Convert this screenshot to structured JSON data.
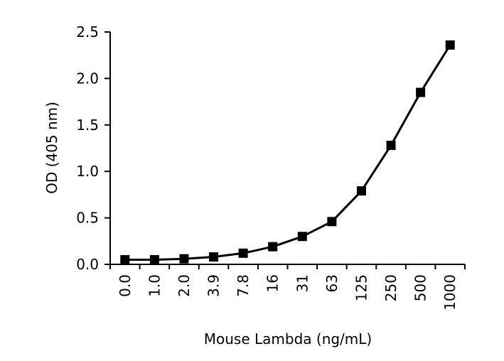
{
  "chart_data": {
    "type": "line",
    "title": "",
    "xlabel": "Mouse Lambda (ng/mL)",
    "ylabel": "OD (405 nm)",
    "categories": [
      "0.0",
      "1.0",
      "2.0",
      "3.9",
      "7.8",
      "16",
      "31",
      "63",
      "125",
      "250",
      "500",
      "1000"
    ],
    "series": [
      {
        "values": [
          0.05,
          0.05,
          0.06,
          0.08,
          0.12,
          0.19,
          0.3,
          0.46,
          0.79,
          1.28,
          1.85,
          2.36
        ]
      }
    ],
    "yticks": [
      "0.0",
      "0.5",
      "1.0",
      "1.5",
      "2.0",
      "2.5"
    ],
    "ylim": [
      0,
      2.5
    ],
    "grid": false,
    "marker": "square",
    "line_color": "#000000",
    "marker_color": "#000000"
  }
}
